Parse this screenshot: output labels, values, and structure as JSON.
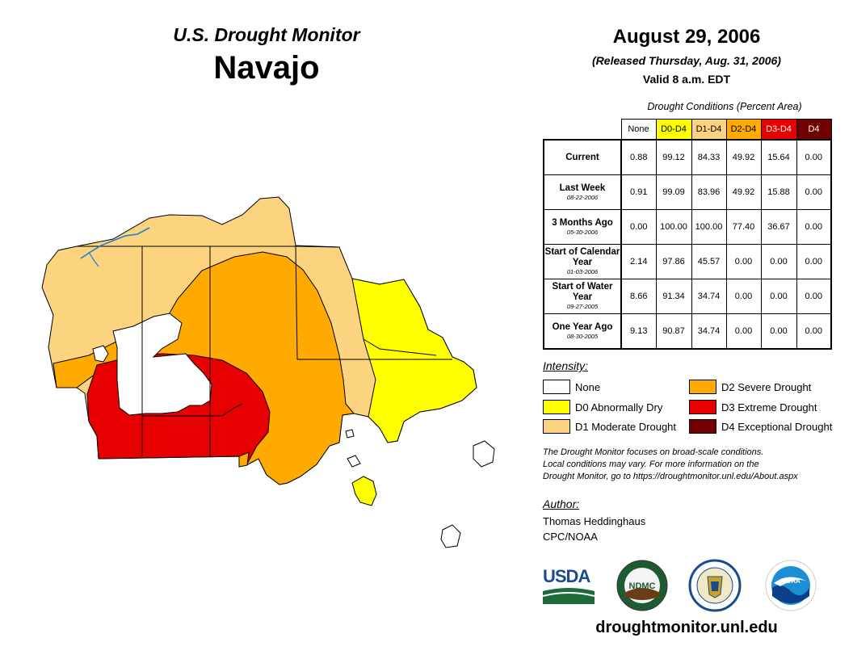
{
  "header": {
    "subtitle": "U.S. Drought Monitor",
    "region": "Navajo",
    "date": "August 29, 2006",
    "released": "(Released Thursday, Aug. 31, 2006)",
    "valid": "Valid 8 a.m. EDT"
  },
  "table": {
    "caption": "Drought Conditions (Percent Area)",
    "columns": [
      "None",
      "D0-D4",
      "D1-D4",
      "D2-D4",
      "D3-D4",
      "D4"
    ],
    "rows": [
      {
        "label": "Current",
        "date": "",
        "values": [
          "0.88",
          "99.12",
          "84.33",
          "49.92",
          "15.64",
          "0.00"
        ]
      },
      {
        "label": "Last Week",
        "date": "08-22-2006",
        "values": [
          "0.91",
          "99.09",
          "83.96",
          "49.92",
          "15.88",
          "0.00"
        ]
      },
      {
        "label": "3 Months Ago",
        "date": "05-30-2006",
        "values": [
          "0.00",
          "100.00",
          "100.00",
          "77.40",
          "36.67",
          "0.00"
        ]
      },
      {
        "label": "Start of Calendar Year",
        "date": "01-03-2006",
        "values": [
          "2.14",
          "97.86",
          "45.57",
          "0.00",
          "0.00",
          "0.00"
        ]
      },
      {
        "label": "Start of Water Year",
        "date": "09-27-2005",
        "values": [
          "8.66",
          "91.34",
          "34.74",
          "0.00",
          "0.00",
          "0.00"
        ]
      },
      {
        "label": "One Year Ago",
        "date": "08-30-2005",
        "values": [
          "9.13",
          "90.87",
          "34.74",
          "0.00",
          "0.00",
          "0.00"
        ]
      }
    ]
  },
  "legend": {
    "title": "Intensity:",
    "items": [
      {
        "label": "None",
        "color": "#ffffff"
      },
      {
        "label": "D0 Abnormally Dry",
        "color": "#ffff00"
      },
      {
        "label": "D1 Moderate Drought",
        "color": "#fcd37f"
      },
      {
        "label": "D2 Severe Drought",
        "color": "#ffaa00"
      },
      {
        "label": "D3 Extreme Drought",
        "color": "#e60000"
      },
      {
        "label": "D4 Exceptional Drought",
        "color": "#730000"
      }
    ]
  },
  "notes": {
    "line1": "The Drought Monitor focuses on broad-scale conditions.",
    "line2": "Local conditions may vary. For more information on the",
    "line3": "Drought Monitor, go to https://droughtmonitor.unl.edu/About.aspx"
  },
  "author": {
    "title": "Author:",
    "name": "Thomas Heddinghaus",
    "org": "CPC/NOAA"
  },
  "logos": {
    "usda": "USDA",
    "ndmc": "NDMC",
    "noaa": "NOAA"
  },
  "url": "droughtmonitor.unl.edu",
  "colors": {
    "none": "#ffffff",
    "d0": "#ffff00",
    "d1": "#fcd37f",
    "d2": "#ffaa00",
    "d3": "#e60000",
    "d4": "#730000",
    "river": "#1e7fd6"
  }
}
